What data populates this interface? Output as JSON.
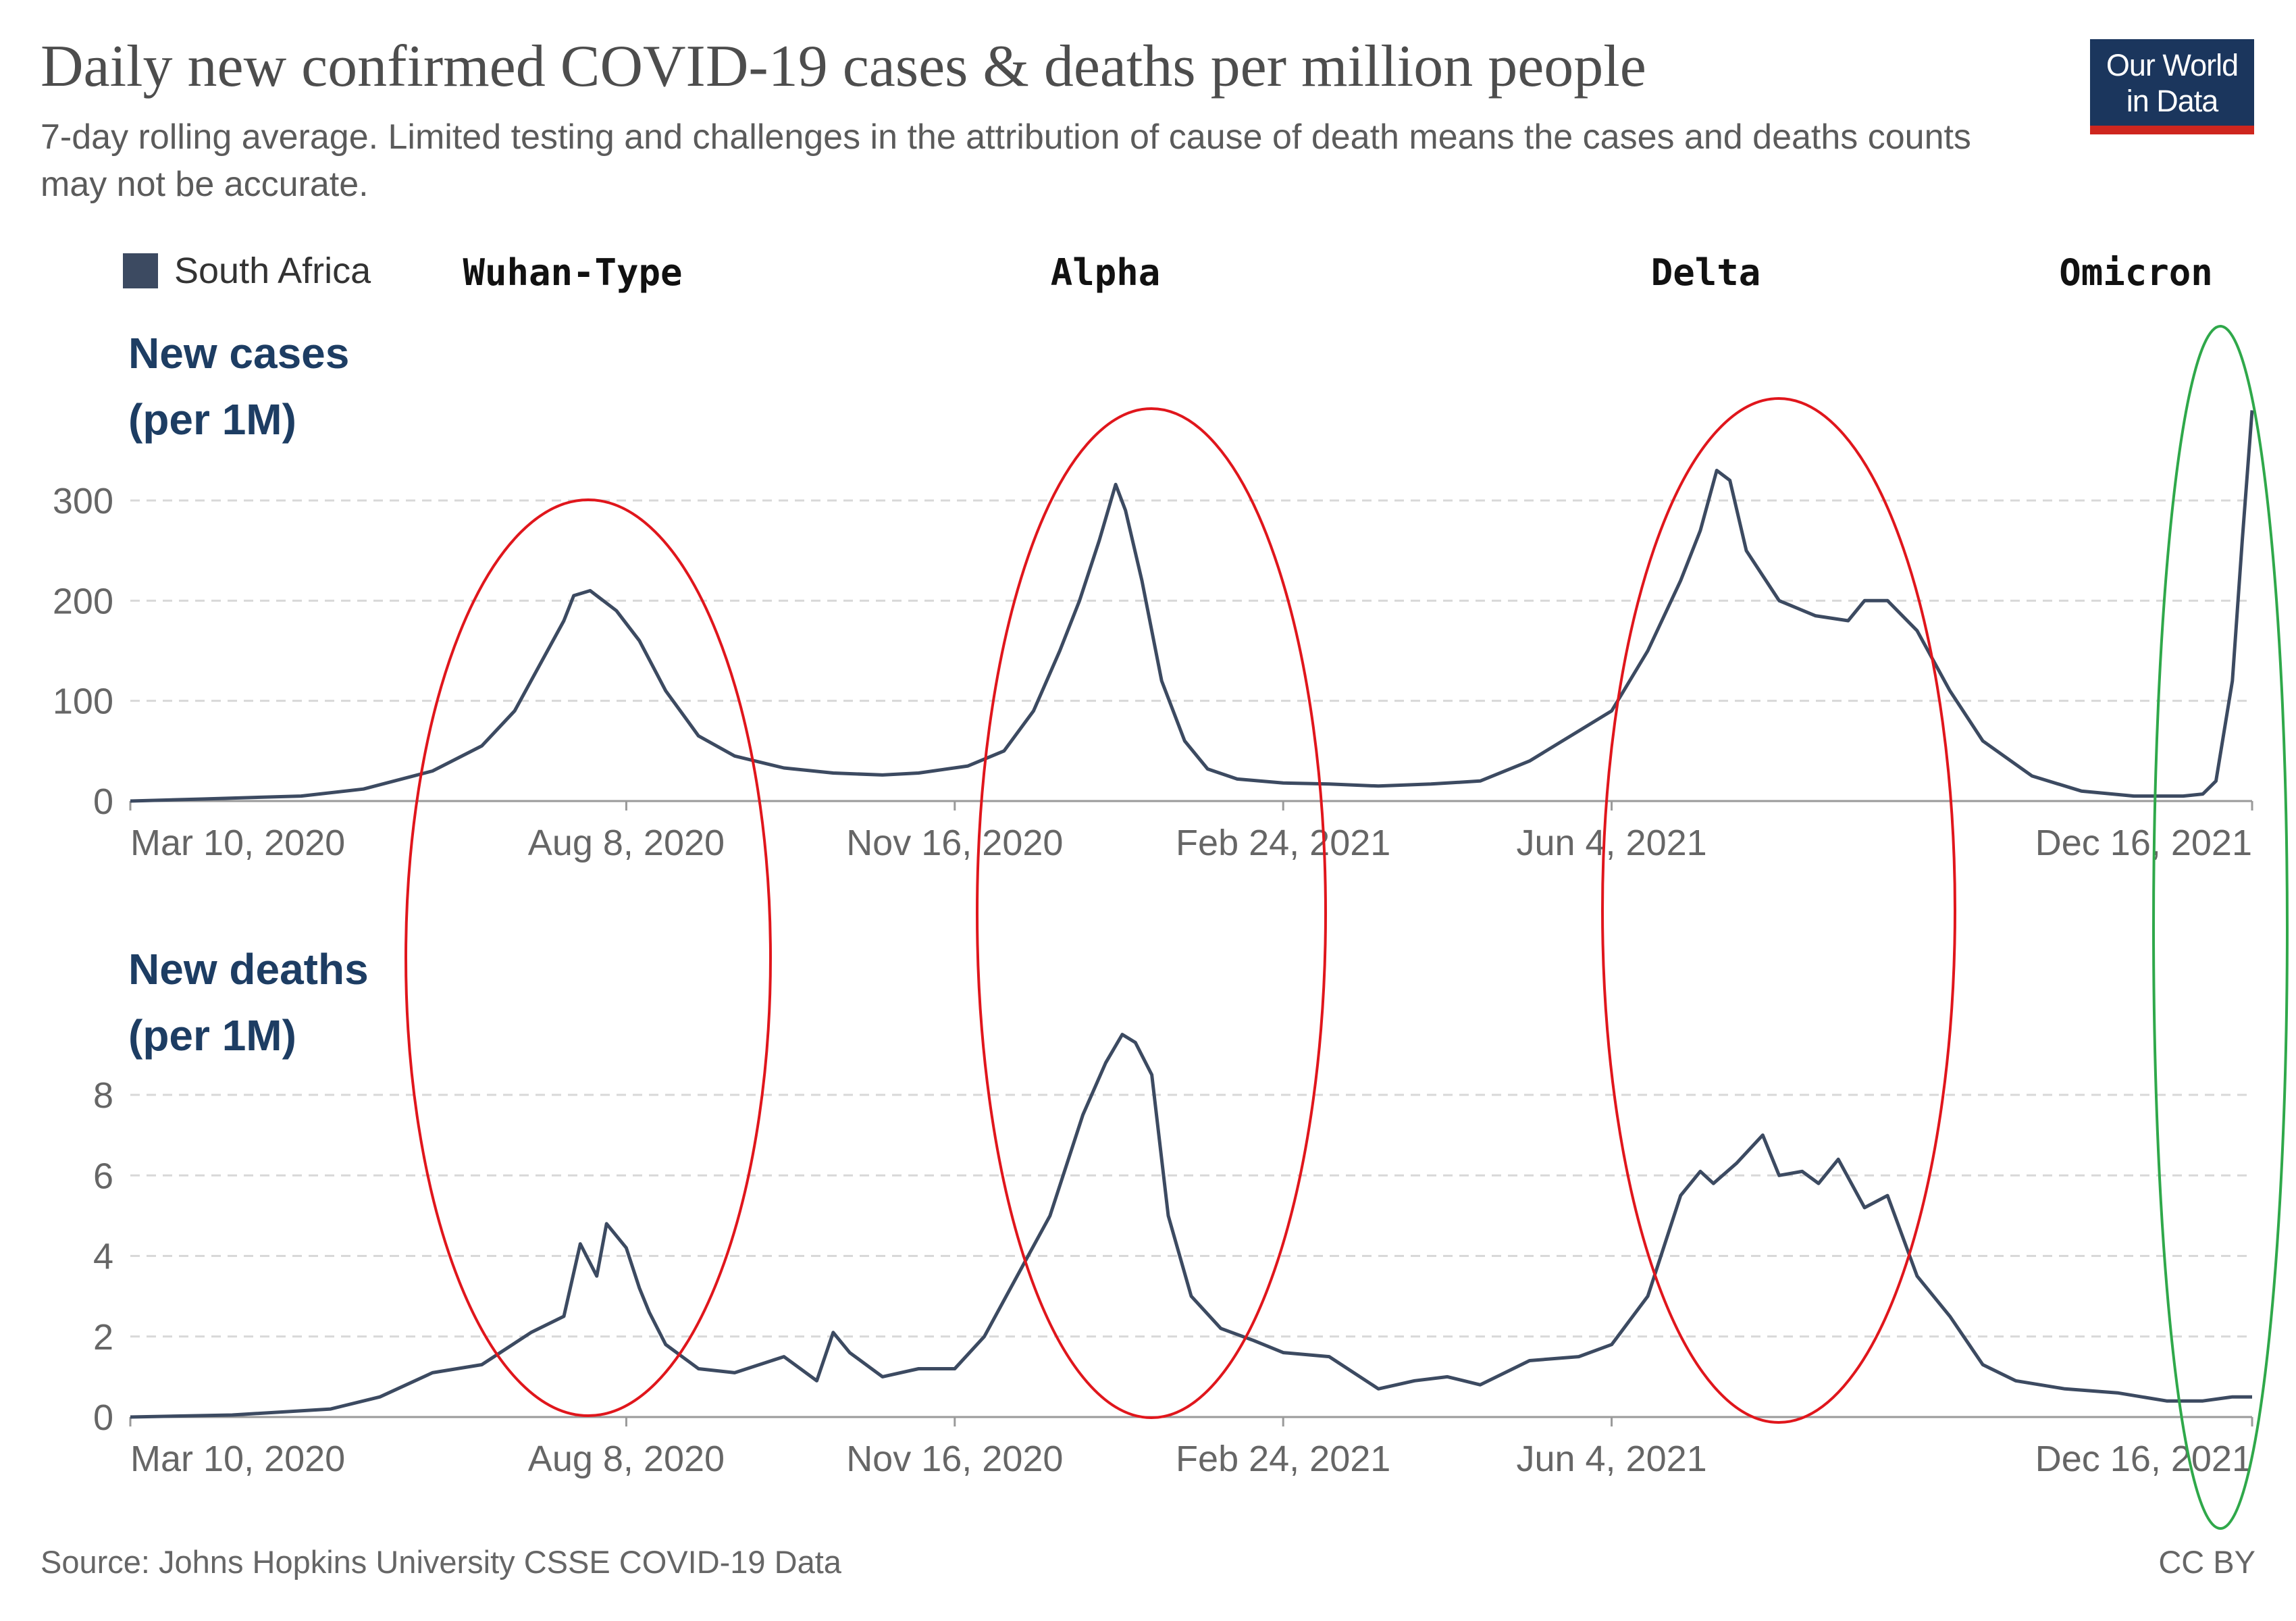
{
  "header": {
    "title": "Daily new confirmed COVID-19 cases & deaths per million people",
    "subtitle": "7-day rolling average. Limited testing and challenges in the attribution of cause of death means the cases and deaths counts may not be accurate.",
    "logo_line1": "Our World",
    "logo_line2": "in Data"
  },
  "legend": {
    "label": "South Africa",
    "color": "#3c4a61"
  },
  "variants": [
    "Wuhan-Type",
    "Alpha",
    "Delta",
    "Omicron"
  ],
  "panels": {
    "cases": {
      "label_line1": "New cases",
      "label_line2": "(per 1M)"
    },
    "deaths": {
      "label_line1": "New deaths",
      "label_line2": "(per 1M)"
    }
  },
  "footer": {
    "source": "Source: Johns Hopkins University CSSE COVID-19 Data",
    "license": "CC BY"
  },
  "chart_data": [
    {
      "type": "line",
      "title": "New cases (per 1M)",
      "country": "South Africa",
      "line_color": "#3c4a61",
      "x_ticks": [
        "Mar 10, 2020",
        "Aug 8, 2020",
        "Nov 16, 2020",
        "Feb 24, 2021",
        "Jun 4, 2021",
        "Dec 16, 2021"
      ],
      "y_ticks": [
        0,
        100,
        200,
        300
      ],
      "ylim": [
        0,
        390
      ],
      "grid": true,
      "x": [
        "2020-03-10",
        "2020-04-01",
        "2020-05-01",
        "2020-05-20",
        "2020-06-10",
        "2020-06-25",
        "2020-07-05",
        "2020-07-15",
        "2020-07-20",
        "2020-07-23",
        "2020-07-28",
        "2020-08-05",
        "2020-08-12",
        "2020-08-20",
        "2020-08-30",
        "2020-09-10",
        "2020-09-25",
        "2020-10-10",
        "2020-10-25",
        "2020-11-05",
        "2020-11-20",
        "2020-12-01",
        "2020-12-10",
        "2020-12-18",
        "2020-12-24",
        "2020-12-30",
        "2021-01-04",
        "2021-01-07",
        "2021-01-12",
        "2021-01-18",
        "2021-01-25",
        "2021-02-01",
        "2021-02-10",
        "2021-02-24",
        "2021-03-10",
        "2021-03-25",
        "2021-04-10",
        "2021-04-25",
        "2021-05-10",
        "2021-05-25",
        "2021-06-04",
        "2021-06-15",
        "2021-06-25",
        "2021-07-01",
        "2021-07-06",
        "2021-07-10",
        "2021-07-15",
        "2021-07-25",
        "2021-08-05",
        "2021-08-15",
        "2021-08-20",
        "2021-08-27",
        "2021-09-05",
        "2021-09-15",
        "2021-09-25",
        "2021-10-10",
        "2021-10-25",
        "2021-11-10",
        "2021-11-25",
        "2021-12-01",
        "2021-12-05",
        "2021-12-10",
        "2021-12-13",
        "2021-12-16"
      ],
      "values": [
        0,
        2,
        5,
        12,
        30,
        55,
        90,
        150,
        180,
        205,
        210,
        190,
        160,
        110,
        65,
        45,
        33,
        28,
        26,
        28,
        35,
        50,
        90,
        150,
        200,
        260,
        316,
        290,
        220,
        120,
        60,
        32,
        22,
        18,
        17,
        15,
        17,
        20,
        40,
        70,
        90,
        150,
        220,
        270,
        330,
        320,
        250,
        200,
        185,
        180,
        200,
        200,
        170,
        110,
        60,
        25,
        10,
        5,
        5,
        7,
        20,
        120,
        260,
        390
      ]
    },
    {
      "type": "line",
      "title": "New deaths (per 1M)",
      "country": "South Africa",
      "line_color": "#3c4a61",
      "x_ticks": [
        "Mar 10, 2020",
        "Aug 8, 2020",
        "Nov 16, 2020",
        "Feb 24, 2021",
        "Jun 4, 2021",
        "Dec 16, 2021"
      ],
      "y_ticks": [
        0,
        2,
        4,
        6,
        8
      ],
      "ylim": [
        0,
        10.5
      ],
      "grid": true,
      "x": [
        "2020-03-10",
        "2020-04-10",
        "2020-05-10",
        "2020-05-25",
        "2020-06-10",
        "2020-06-25",
        "2020-07-10",
        "2020-07-20",
        "2020-07-25",
        "2020-07-30",
        "2020-08-02",
        "2020-08-08",
        "2020-08-12",
        "2020-08-15",
        "2020-08-20",
        "2020-08-30",
        "2020-09-10",
        "2020-09-25",
        "2020-10-05",
        "2020-10-10",
        "2020-10-15",
        "2020-10-25",
        "2020-11-05",
        "2020-11-16",
        "2020-11-25",
        "2020-12-05",
        "2020-12-15",
        "2020-12-25",
        "2021-01-01",
        "2021-01-06",
        "2021-01-10",
        "2021-01-15",
        "2021-01-20",
        "2021-01-27",
        "2021-02-05",
        "2021-02-15",
        "2021-02-24",
        "2021-03-10",
        "2021-03-25",
        "2021-04-05",
        "2021-04-15",
        "2021-04-25",
        "2021-05-10",
        "2021-05-25",
        "2021-06-04",
        "2021-06-15",
        "2021-06-25",
        "2021-07-01",
        "2021-07-05",
        "2021-07-12",
        "2021-07-20",
        "2021-07-25",
        "2021-08-01",
        "2021-08-06",
        "2021-08-12",
        "2021-08-20",
        "2021-08-27",
        "2021-09-05",
        "2021-09-15",
        "2021-09-25",
        "2021-10-05",
        "2021-10-20",
        "2021-11-05",
        "2021-11-20",
        "2021-12-01",
        "2021-12-10",
        "2021-12-16"
      ],
      "values": [
        0,
        0.05,
        0.2,
        0.5,
        1.1,
        1.3,
        2.1,
        2.5,
        4.3,
        3.5,
        4.8,
        4.2,
        3.2,
        2.6,
        1.8,
        1.2,
        1.1,
        1.5,
        0.9,
        2.1,
        1.6,
        1.0,
        1.2,
        1.2,
        2.0,
        3.5,
        5.0,
        7.5,
        8.8,
        9.5,
        9.3,
        8.5,
        5.0,
        3.0,
        2.2,
        1.9,
        1.6,
        1.5,
        0.7,
        0.9,
        1.0,
        0.8,
        1.4,
        1.5,
        1.8,
        3.0,
        5.5,
        6.1,
        5.8,
        6.3,
        7.0,
        6.0,
        6.1,
        5.8,
        6.4,
        5.2,
        5.5,
        3.5,
        2.5,
        1.3,
        0.9,
        0.7,
        0.6,
        0.4,
        0.4,
        0.5,
        0.5
      ]
    }
  ]
}
